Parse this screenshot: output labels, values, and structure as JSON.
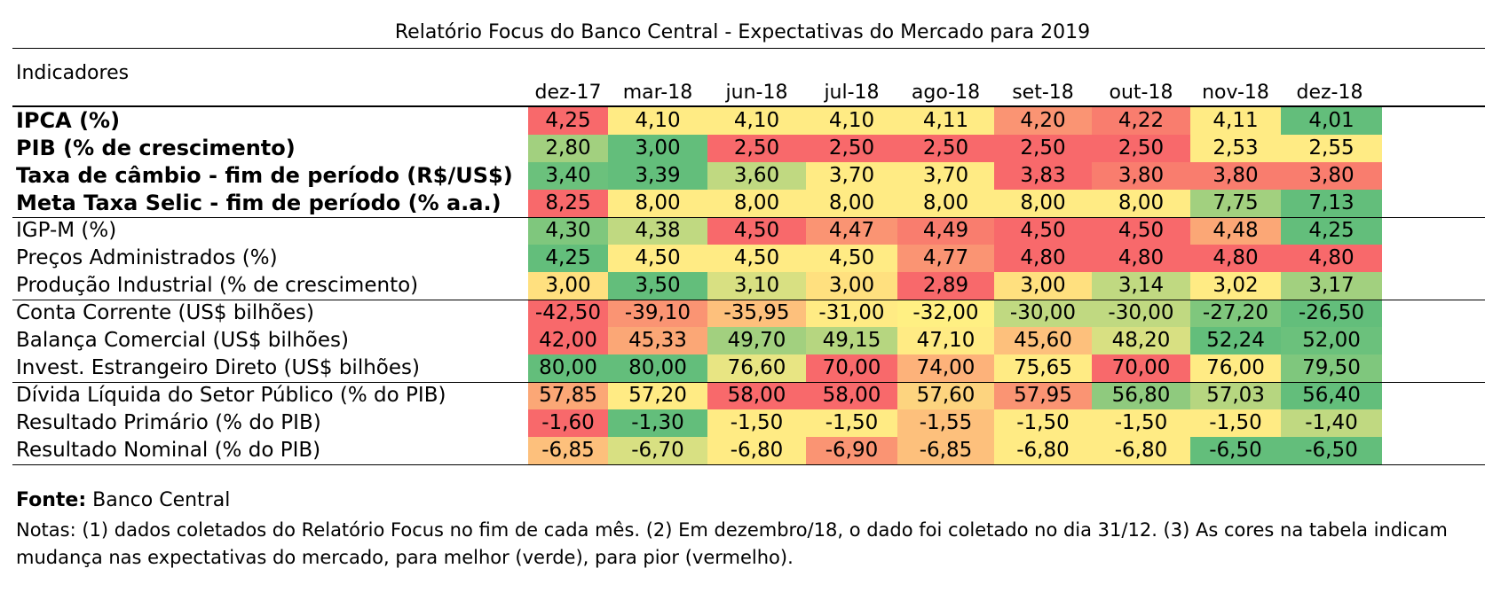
{
  "title": "Relatório Focus do Banco Central - Expectativas do Mercado para 2019",
  "header_label": "Indicadores",
  "columns": [
    "dez-17",
    "mar-18",
    "jun-18",
    "jul-18",
    "ago-18",
    "set-18",
    "out-18",
    "nov-18",
    "dez-18"
  ],
  "rows": [
    {
      "label": "IPCA (%)",
      "bold": true,
      "values": [
        "4,25",
        "4,10",
        "4,10",
        "4,10",
        "4,11",
        "4,20",
        "4,22",
        "4,11",
        "4,01"
      ],
      "colors": [
        "#f8696b",
        "#ffeb84",
        "#ffeb84",
        "#ffeb84",
        "#ffeb84",
        "#fa9473",
        "#f97d6e",
        "#ffeb84",
        "#63be7b"
      ]
    },
    {
      "label": "PIB (% de crescimento)",
      "bold": true,
      "values": [
        "2,80",
        "3,00",
        "2,50",
        "2,50",
        "2,50",
        "2,50",
        "2,50",
        "2,53",
        "2,55"
      ],
      "colors": [
        "#a2d07f",
        "#63be7b",
        "#f8696b",
        "#f8696b",
        "#f8696b",
        "#f8696b",
        "#f8696b",
        "#ffeb84",
        "#ffeb84"
      ]
    },
    {
      "label": "Taxa de câmbio - fim de período (R$/US$)",
      "bold": true,
      "values": [
        "3,40",
        "3,39",
        "3,60",
        "3,70",
        "3,70",
        "3,83",
        "3,80",
        "3,80",
        "3,80"
      ],
      "colors": [
        "#6bc17c",
        "#63be7b",
        "#c0d981",
        "#ffeb84",
        "#ffeb84",
        "#f8696b",
        "#f97d6e",
        "#f97d6e",
        "#f97d6e"
      ]
    },
    {
      "label": "Meta Taxa Selic - fim de período (% a.a.)",
      "bold": true,
      "values": [
        "8,25",
        "8,00",
        "8,00",
        "8,00",
        "8,00",
        "8,00",
        "8,00",
        "7,75",
        "7,13"
      ],
      "colors": [
        "#f8696b",
        "#ffeb84",
        "#ffeb84",
        "#ffeb84",
        "#ffeb84",
        "#ffeb84",
        "#ffeb84",
        "#a2d07f",
        "#63be7b"
      ]
    },
    {
      "label": "IGP-M (%)",
      "bold": false,
      "values": [
        "4,30",
        "4,38",
        "4,50",
        "4,47",
        "4,49",
        "4,50",
        "4,50",
        "4,48",
        "4,25"
      ],
      "colors": [
        "#7fc77d",
        "#c0d981",
        "#f8696b",
        "#fa9473",
        "#f97d6e",
        "#f8696b",
        "#f8696b",
        "#fba776",
        "#63be7b"
      ]
    },
    {
      "label": "Preços Administrados (%)",
      "bold": false,
      "values": [
        "4,25",
        "4,50",
        "4,50",
        "4,50",
        "4,77",
        "4,80",
        "4,80",
        "4,80",
        "4,80"
      ],
      "colors": [
        "#63be7b",
        "#ffeb84",
        "#ffeb84",
        "#ffeb84",
        "#fa9473",
        "#f8696b",
        "#f8696b",
        "#f8696b",
        "#f8696b"
      ]
    },
    {
      "label": "Produção Industrial (% de crescimento)",
      "bold": false,
      "values": [
        "3,00",
        "3,50",
        "3,10",
        "3,00",
        "2,89",
        "3,00",
        "3,14",
        "3,02",
        "3,17"
      ],
      "colors": [
        "#ffe07f",
        "#63be7b",
        "#d8e082",
        "#ffe07f",
        "#f8696b",
        "#ffe07f",
        "#c0d981",
        "#ffeb84",
        "#a2d07f"
      ]
    },
    {
      "label": "Conta Corrente (US$ bilhões)",
      "bold": false,
      "values": [
        "-42,50",
        "-39,10",
        "-35,95",
        "-31,00",
        "-32,00",
        "-30,00",
        "-30,00",
        "-27,20",
        "-26,50"
      ],
      "colors": [
        "#f8696b",
        "#fa9473",
        "#fdc07c",
        "#ffeb84",
        "#fff083",
        "#c0d981",
        "#c0d981",
        "#7fc77d",
        "#63be7b"
      ]
    },
    {
      "label": "Balança Comercial (US$ bilhões)",
      "bold": false,
      "values": [
        "42,00",
        "45,33",
        "49,70",
        "49,15",
        "47,10",
        "45,60",
        "48,20",
        "52,24",
        "52,00"
      ],
      "colors": [
        "#f8696b",
        "#fba776",
        "#a2d07f",
        "#b6d680",
        "#ffeb84",
        "#fdc07c",
        "#d8e082",
        "#63be7b",
        "#6bc17c"
      ]
    },
    {
      "label": "Invest. Estrangeiro Direto (US$ bilhões)",
      "bold": false,
      "values": [
        "80,00",
        "80,00",
        "76,60",
        "70,00",
        "74,00",
        "75,65",
        "70,00",
        "76,00",
        "79,50"
      ],
      "colors": [
        "#63be7b",
        "#63be7b",
        "#e8e583",
        "#f8696b",
        "#fdb27a",
        "#ffeb84",
        "#f8696b",
        "#ffeb84",
        "#7fc77d"
      ]
    },
    {
      "label": "Dívida Líquida do Setor Público (% do PIB)",
      "bold": false,
      "values": [
        "57,85",
        "57,20",
        "58,00",
        "58,00",
        "57,60",
        "57,95",
        "56,80",
        "57,03",
        "56,40"
      ],
      "colors": [
        "#fba776",
        "#ffeb84",
        "#f8696b",
        "#f8696b",
        "#fdd47f",
        "#fa9473",
        "#8fca7e",
        "#b6d680",
        "#63be7b"
      ]
    },
    {
      "label": "Resultado Primário (% do PIB)",
      "bold": false,
      "values": [
        "-1,60",
        "-1,30",
        "-1,50",
        "-1,50",
        "-1,55",
        "-1,50",
        "-1,50",
        "-1,50",
        "-1,40"
      ],
      "colors": [
        "#f8696b",
        "#63be7b",
        "#ffeb84",
        "#ffeb84",
        "#fdc07c",
        "#ffeb84",
        "#ffeb84",
        "#ffeb84",
        "#c0d981"
      ]
    },
    {
      "label": "Resultado Nominal (% do PIB)",
      "bold": false,
      "values": [
        "-6,85",
        "-6,70",
        "-6,80",
        "-6,90",
        "-6,85",
        "-6,80",
        "-6,80",
        "-6,50",
        "-6,50"
      ],
      "colors": [
        "#fdc07c",
        "#d8e082",
        "#ffeb84",
        "#fa9473",
        "#fdc07c",
        "#ffeb84",
        "#ffeb84",
        "#63be7b",
        "#63be7b"
      ]
    }
  ],
  "source": {
    "label": "Fonte:",
    "text": " Banco Central"
  },
  "notes": "Notas: (1) dados coletados do Relatório Focus no fim de cada mês. (2) Em dezembro/18, o dado foi coletado no dia 31/12. (3) As cores na tabela indicam mudança nas expectativas do mercado, para melhor (verde), para pior (vermelho)."
}
